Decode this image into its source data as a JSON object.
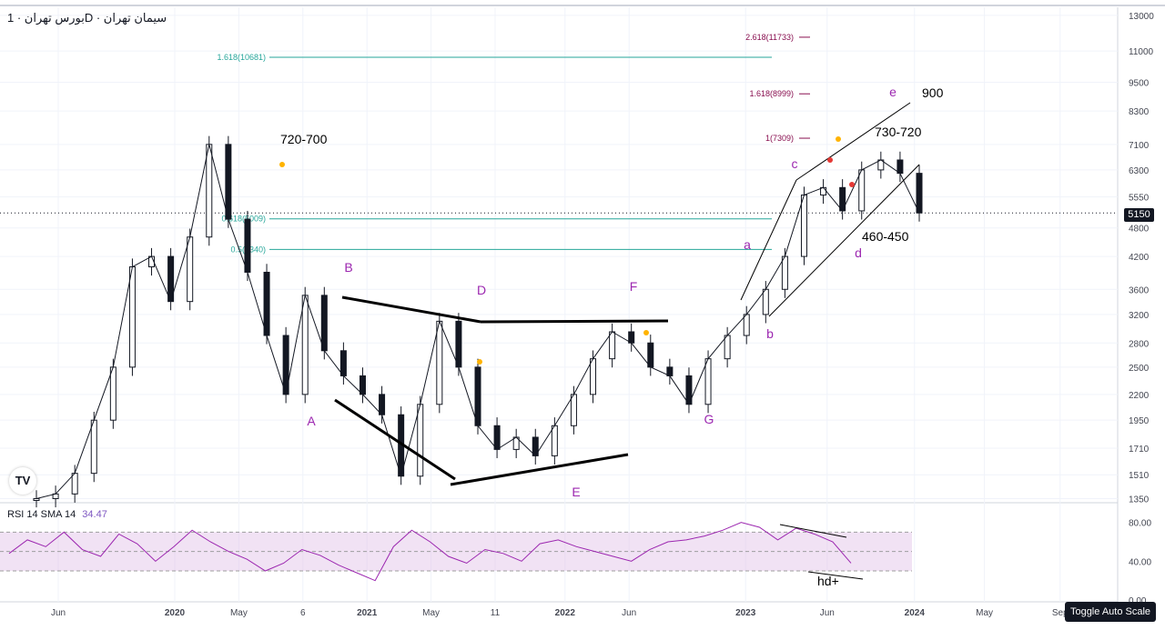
{
  "header": {
    "title": "بورس تهران · 1D · سیمان تهران"
  },
  "rsi": {
    "label": "RSI 14 SMA 14",
    "value": "34.47",
    "line_color": "#9c27b0",
    "band_color": "#e1bee7",
    "upper": 70,
    "lower": 30,
    "mid": 50
  },
  "price_badge": "5150",
  "toggle_button": "Toggle Auto Scale",
  "logo_text": "TV",
  "colors": {
    "grid": "#f0f3fa",
    "fib_line": "#26a69a",
    "fib_label": "#880e4f",
    "wave_label": "#9c27b0",
    "annotation": "#000000",
    "dot_orange": "#ffb300",
    "dot_red": "#e53935"
  },
  "chart_data": {
    "type": "candlestick",
    "title": "سیمان تهران (1D)",
    "y_scale": "log",
    "ylim": [
      1330,
      13500
    ],
    "y_ticks": [
      "13000",
      "11000",
      "9500",
      "8300",
      "7100",
      "6300",
      "5550",
      "4800",
      "4200",
      "3600",
      "3200",
      "2800",
      "2500",
      "2200",
      "1950",
      "1710",
      "1510",
      "1350"
    ],
    "x_ticks": [
      "Jun",
      "2020",
      "May",
      "6",
      "2021",
      "May",
      "11",
      "2022",
      "Jun",
      "2023",
      "Jun",
      "2024",
      "May",
      "Sep"
    ],
    "x_tick_positions_pct": [
      5,
      15,
      20.5,
      26,
      31.5,
      37,
      42.5,
      48.5,
      54,
      64,
      71,
      78.5,
      84.5,
      91
    ],
    "current_price": 5150,
    "series": [
      {
        "name": "price",
        "points": [
          [
            "2019-07",
            1350
          ],
          [
            "2019-10",
            1380
          ],
          [
            "2019-12",
            1520
          ],
          [
            "2020-02",
            1950
          ],
          [
            "2020-03",
            2500
          ],
          [
            "2020-04",
            4000
          ],
          [
            "2020-05",
            4200
          ],
          [
            "2020-06",
            3400
          ],
          [
            "2020-07",
            4600
          ],
          [
            "2020-08",
            7100
          ],
          [
            "2020-09",
            5000
          ],
          [
            "2020-10",
            3900
          ],
          [
            "2020-11",
            2900
          ],
          [
            "2020-12",
            2200
          ],
          [
            "2021-01",
            3500
          ],
          [
            "2021-02",
            2700
          ],
          [
            "2021-03",
            2400
          ],
          [
            "2021-04",
            2200
          ],
          [
            "2021-05",
            2000
          ],
          [
            "2021-06",
            1500
          ],
          [
            "2021-07",
            2100
          ],
          [
            "2021-08",
            3100
          ],
          [
            "2021-09",
            2500
          ],
          [
            "2021-10",
            1900
          ],
          [
            "2021-11",
            1700
          ],
          [
            "2021-12",
            1800
          ],
          [
            "2022-01",
            1650
          ],
          [
            "2022-02",
            1900
          ],
          [
            "2022-03",
            2200
          ],
          [
            "2022-04",
            2600
          ],
          [
            "2022-05",
            2950
          ],
          [
            "2022-06",
            2800
          ],
          [
            "2022-07",
            2500
          ],
          [
            "2022-08",
            2400
          ],
          [
            "2022-09",
            2100
          ],
          [
            "2022-10",
            2600
          ],
          [
            "2022-11",
            2900
          ],
          [
            "2022-12",
            3200
          ],
          [
            "2023-01",
            3600
          ],
          [
            "2023-02",
            4200
          ],
          [
            "2023-03",
            5600
          ],
          [
            "2023-04",
            5800
          ],
          [
            "2023-05",
            5200
          ],
          [
            "2023-06",
            6300
          ],
          [
            "2023-07",
            6600
          ],
          [
            "2023-08",
            6200
          ],
          [
            "2023-09",
            5150
          ]
        ]
      }
    ],
    "fibonacci": [
      {
        "label": "2.618(11733)",
        "value": 11733
      },
      {
        "label": "1.618(10681)",
        "value": 10681
      },
      {
        "label": "1.618(8999)",
        "value": 8999
      },
      {
        "label": "1(7309)",
        "value": 7309
      },
      {
        "label": "0.618(5009)",
        "value": 5009
      },
      {
        "label": "0.5(4340)",
        "value": 4340
      }
    ],
    "wave_labels": [
      "A",
      "B",
      "D",
      "E",
      "F",
      "G",
      "a",
      "b",
      "c",
      "d",
      "e"
    ],
    "annotations": [
      "720-700",
      "900",
      "730-720",
      "460-450",
      "hd+"
    ],
    "rsi_y_ticks": [
      "80.00",
      "40.00",
      "0.00"
    ],
    "rsi_values": [
      48,
      62,
      55,
      70,
      52,
      45,
      68,
      58,
      40,
      55,
      72,
      60,
      50,
      42,
      30,
      38,
      52,
      46,
      36,
      28,
      20,
      55,
      72,
      60,
      45,
      38,
      52,
      48,
      40,
      58,
      62,
      55,
      50,
      45,
      40,
      52,
      60,
      62,
      66,
      72,
      80,
      75,
      62,
      74,
      68,
      60,
      38
    ]
  }
}
